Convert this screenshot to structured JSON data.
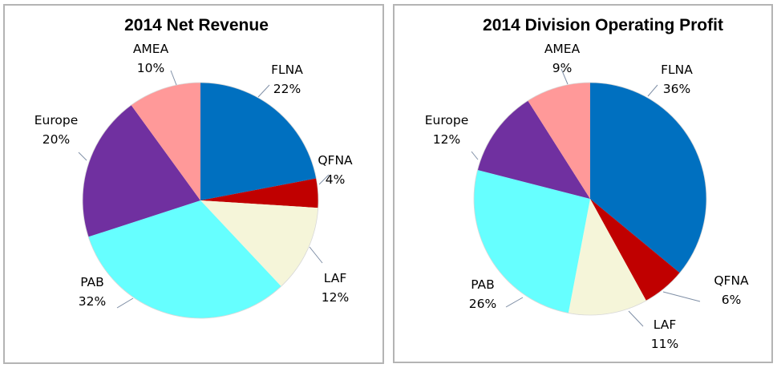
{
  "chart_data": [
    {
      "type": "pie",
      "title": "2014 Net Revenue",
      "start_angle_deg": 0,
      "direction": "clockwise",
      "slices": [
        {
          "label": "FLNA",
          "value": 22,
          "pct_label": "22%",
          "color": "#0070c0"
        },
        {
          "label": "QFNA",
          "value": 4,
          "pct_label": "4%",
          "color": "#c00000"
        },
        {
          "label": "LAF",
          "value": 12,
          "pct_label": "12%",
          "color": "#f5f5d9"
        },
        {
          "label": "PAB",
          "value": 32,
          "pct_label": "32%",
          "color": "#66ffff"
        },
        {
          "label": "Europe",
          "value": 20,
          "pct_label": "20%",
          "color": "#7030a0"
        },
        {
          "label": "AMEA",
          "value": 10,
          "pct_label": "10%",
          "color": "#ff9999"
        }
      ]
    },
    {
      "type": "pie",
      "title": "2014 Division Operating Profit",
      "start_angle_deg": 0,
      "direction": "clockwise",
      "slices": [
        {
          "label": "FLNA",
          "value": 36,
          "pct_label": "36%",
          "color": "#0070c0"
        },
        {
          "label": "QFNA",
          "value": 6,
          "pct_label": "6%",
          "color": "#c00000"
        },
        {
          "label": "LAF",
          "value": 11,
          "pct_label": "11%",
          "color": "#f5f5d9"
        },
        {
          "label": "PAB",
          "value": 26,
          "pct_label": "26%",
          "color": "#66ffff"
        },
        {
          "label": "Europe",
          "value": 12,
          "pct_label": "12%",
          "color": "#7030a0"
        },
        {
          "label": "AMEA",
          "value": 9,
          "pct_label": "9%",
          "color": "#ff9999"
        }
      ]
    }
  ]
}
